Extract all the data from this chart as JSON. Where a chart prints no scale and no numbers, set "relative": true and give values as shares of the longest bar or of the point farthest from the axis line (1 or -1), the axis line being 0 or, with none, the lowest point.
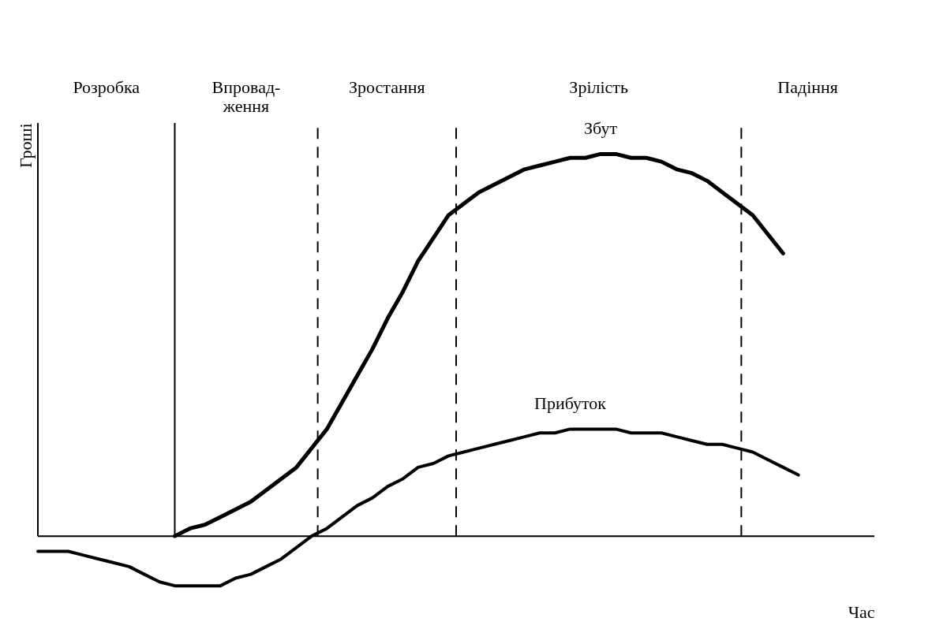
{
  "chart_data": {
    "type": "line",
    "relative": true,
    "tick_labels": false,
    "xlabel": "Час",
    "ylabel": "Гроші",
    "marker": "none",
    "line_style": "solid",
    "categories": [
      null,
      null,
      null,
      null,
      null,
      null,
      null,
      null,
      null,
      null,
      null,
      null,
      null,
      null,
      null,
      null,
      null,
      null,
      null,
      null,
      null,
      null,
      null,
      null,
      null,
      null,
      null,
      null,
      null,
      null,
      null,
      null,
      null,
      null,
      null,
      null,
      null,
      null,
      null,
      null,
      null,
      null,
      null,
      null,
      null,
      null,
      null,
      null,
      null,
      null,
      null
    ],
    "series": [
      {
        "name": "Збут",
        "color": "#000000",
        "values": [
          null,
          null,
          null,
          null,
          null,
          null,
          null,
          null,
          null,
          0,
          0.02,
          0.03,
          0.05,
          0.07,
          0.09,
          0.12,
          0.15,
          0.18,
          0.23,
          0.28,
          0.35,
          0.42,
          0.49,
          0.57,
          0.64,
          0.72,
          0.78,
          0.84,
          0.87,
          0.9,
          0.92,
          0.94,
          0.96,
          0.97,
          0.98,
          0.99,
          0.99,
          1.0,
          1.0,
          0.99,
          0.99,
          0.98,
          0.96,
          0.95,
          0.93,
          0.9,
          0.87,
          0.84,
          0.79,
          0.74,
          null
        ]
      },
      {
        "name": "Прибуток",
        "color": "#000000",
        "values": [
          -0.04,
          -0.04,
          -0.04,
          -0.05,
          -0.06,
          -0.07,
          -0.08,
          -0.1,
          -0.12,
          -0.13,
          -0.13,
          -0.13,
          -0.13,
          -0.11,
          -0.1,
          -0.08,
          -0.06,
          -0.03,
          0,
          0.02,
          0.05,
          0.08,
          0.1,
          0.13,
          0.15,
          0.18,
          0.19,
          0.21,
          0.22,
          0.23,
          0.24,
          0.25,
          0.26,
          0.27,
          0.27,
          0.28,
          0.28,
          0.28,
          0.28,
          0.27,
          0.27,
          0.27,
          0.26,
          0.25,
          0.24,
          0.24,
          0.23,
          0.22,
          0.2,
          0.18,
          0.16
        ]
      }
    ],
    "annotations": [
      "Розробка",
      "Впровад-\nження",
      "Зростання",
      "Зрілість",
      "Падіння"
    ]
  }
}
